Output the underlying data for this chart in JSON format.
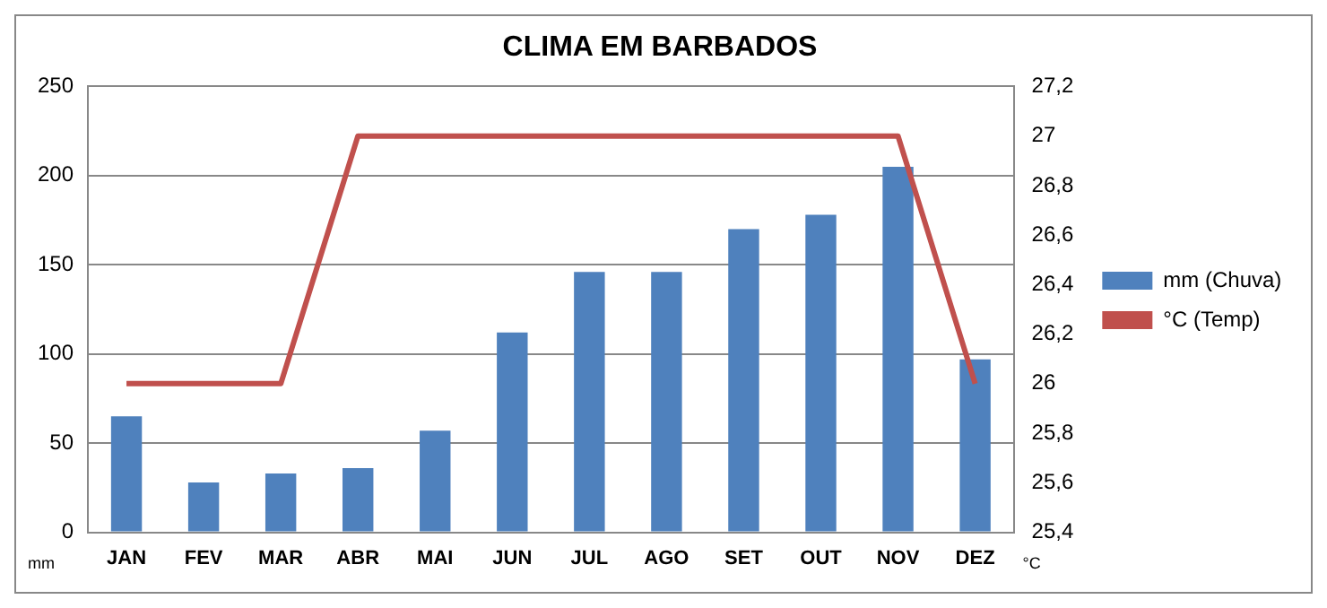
{
  "chart_data": {
    "type": "bar",
    "title": "CLIMA EM BARBADOS",
    "ylabel": "mm",
    "y2label": "°C",
    "categories": [
      "JAN",
      "FEV",
      "MAR",
      "ABR",
      "MAI",
      "JUN",
      "JUL",
      "AGO",
      "SET",
      "OUT",
      "NOV",
      "DEZ"
    ],
    "series": [
      {
        "name": "mm (Chuva)",
        "color": "#4f81bd",
        "values": [
          65,
          28,
          33,
          36,
          57,
          112,
          146,
          146,
          170,
          178,
          205,
          97
        ]
      },
      {
        "name": "°C (Temp)",
        "type": "line",
        "axis": "y2",
        "color": "#c0504d",
        "values": [
          26,
          26,
          26,
          27,
          27,
          27,
          27,
          27,
          27,
          27,
          27,
          26
        ]
      }
    ],
    "ylim": [
      0,
      250
    ],
    "yticks": [
      0,
      50,
      100,
      150,
      200,
      250
    ],
    "y2lim": [
      25.4,
      27.2
    ],
    "y2ticks": [
      {
        "value": 25.4,
        "label": "25,4"
      },
      {
        "value": 25.6,
        "label": "25,6"
      },
      {
        "value": 25.8,
        "label": "25,8"
      },
      26,
      {
        "value": 26.2,
        "label": "26,2"
      },
      {
        "value": 26.4,
        "label": "26,4"
      },
      {
        "value": 26.6,
        "label": "26,6"
      },
      {
        "value": 26.8,
        "label": "26,8"
      },
      27,
      {
        "value": 27.2,
        "label": "27,2"
      }
    ],
    "grid": "y",
    "legend": "right",
    "marker": "none"
  }
}
